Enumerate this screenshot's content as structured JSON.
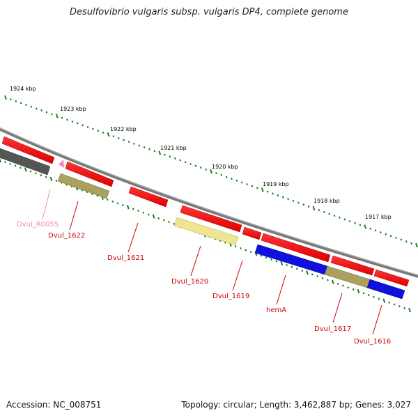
{
  "title": "Desulfovibrio vulgaris subsp. vulgaris DP4, complete genome",
  "footer": {
    "accession": "Accession: NC_008751",
    "summary": "Topology: circular; Length: 3,462,887 bp; Genes: 3,027"
  },
  "colors": {
    "forward_gene": "#ee1111",
    "reverse_gene": "#444444",
    "backbone": "#777777",
    "tick": "#1a7a1a",
    "label_red": "#cc0000",
    "label_pink": "#ee88bb",
    "olive": "#a8a060",
    "pale_yellow": "#eee590",
    "blue": "#1111dd"
  },
  "ruler": {
    "labels": [
      "1924 kbp",
      "1923 kbp",
      "1922 kbp",
      "1921 kbp",
      "1920 kbp",
      "1919 kbp",
      "1918 kbp",
      "1917 kbp"
    ]
  },
  "genes": [
    {
      "name": "Dvul_R0055",
      "color": "pink"
    },
    {
      "name": "Dvul_1622",
      "color": "red"
    },
    {
      "name": "Dvul_1621",
      "color": "red"
    },
    {
      "name": "Dvul_1620",
      "color": "red"
    },
    {
      "name": "Dvul_1619",
      "color": "red"
    },
    {
      "name": "hemA",
      "color": "red"
    },
    {
      "name": "Dvul_1617",
      "color": "red"
    },
    {
      "name": "Dvul_1616",
      "color": "red"
    }
  ]
}
